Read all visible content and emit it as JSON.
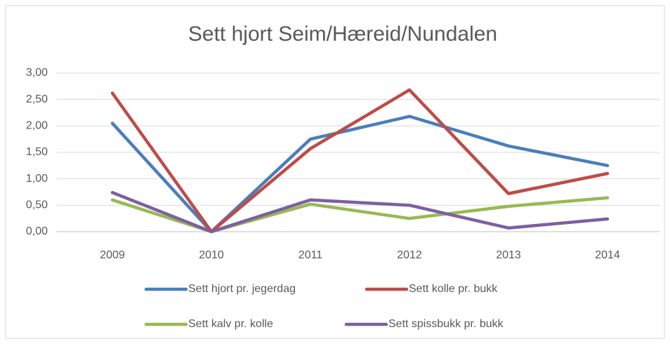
{
  "chart_data": {
    "type": "line",
    "title": "Sett hjort Seim/Hæreid/Nundalen",
    "categories": [
      "2009",
      "2010",
      "2011",
      "2012",
      "2013",
      "2014"
    ],
    "series": [
      {
        "name": "Sett hjort pr. jegerdag",
        "color": "#4a7ebb",
        "values": [
          2.05,
          0,
          1.75,
          2.18,
          1.62,
          1.25
        ]
      },
      {
        "name": "Sett kolle pr. bukk",
        "color": "#be4b48",
        "values": [
          2.62,
          0,
          1.57,
          2.68,
          0.72,
          1.1
        ]
      },
      {
        "name": "Sett kalv pr. kolle",
        "color": "#98b954",
        "values": [
          0.6,
          0,
          0.52,
          0.25,
          0.48,
          0.64
        ]
      },
      {
        "name": "Sett spissbukk pr. bukk",
        "color": "#7d60a0",
        "values": [
          0.74,
          0,
          0.6,
          0.5,
          0.07,
          0.24
        ]
      }
    ],
    "ylim": [
      0,
      3
    ],
    "yticks": [
      {
        "value": 0,
        "label": "0,00"
      },
      {
        "value": 0.5,
        "label": "0,50"
      },
      {
        "value": 1,
        "label": "1,00"
      },
      {
        "value": 1.5,
        "label": "1,50"
      },
      {
        "value": 2,
        "label": "2,00"
      },
      {
        "value": 2.5,
        "label": "2,50"
      },
      {
        "value": 3,
        "label": "3,00"
      }
    ],
    "grid": true,
    "legend": "bottom"
  }
}
